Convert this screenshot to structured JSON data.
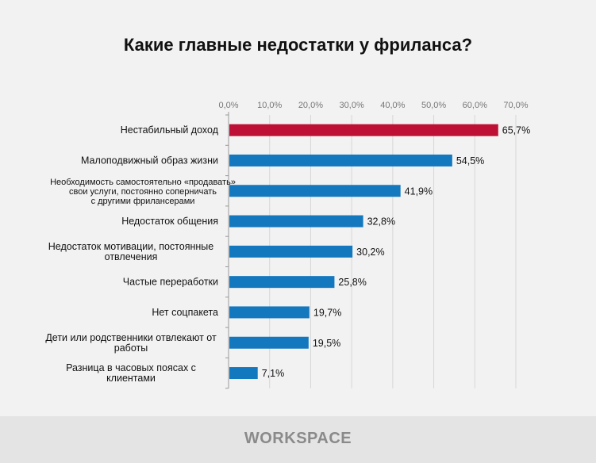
{
  "chart_data": {
    "type": "bar",
    "orientation": "horizontal",
    "title": "Какие главные недостатки у фриланса?",
    "categories": [
      "Нестабильный доход",
      "Малоподвижный образ жизни",
      "Необходимость самостоятельно «продавать» свои услуги, постоянно соперничать с другими фрилансерами",
      "Недостаток общения",
      "Недостаток мотивации, постоянные отвлечения",
      "Частые переработки",
      "Нет соцпакета",
      "Дети или родственники отвлекают от работы",
      "Разница в часовых поясах с клиентами"
    ],
    "category_lines": [
      [
        "Нестабильный доход"
      ],
      [
        "Малоподвижный образ жизни"
      ],
      [
        "Необходимость самостоятельно «продавать»",
        "свои услуги, постоянно соперничать",
        "с другими фрилансерами"
      ],
      [
        "Недостаток общения"
      ],
      [
        "Недостаток мотивации, постоянные",
        "отвлечения"
      ],
      [
        "Частые переработки"
      ],
      [
        "Нет соцпакета"
      ],
      [
        "Дети или родственники отвлекают от",
        "работы"
      ],
      [
        "Разница в часовых поясах с",
        "клиентами"
      ]
    ],
    "values": [
      65.7,
      54.5,
      41.9,
      32.8,
      30.2,
      25.8,
      19.7,
      19.5,
      7.1
    ],
    "data_labels": [
      "65,7%",
      "54,5%",
      "41,9%",
      "32,8%",
      "30,2%",
      "25,8%",
      "19,7%",
      "19,5%",
      "7,1%"
    ],
    "xlim": [
      0,
      70
    ],
    "ticks": [
      0,
      10,
      20,
      30,
      40,
      50,
      60,
      70
    ],
    "tick_labels": [
      "0,0%",
      "10,0%",
      "20,0%",
      "30,0%",
      "40,0%",
      "50,0%",
      "60,0%",
      "70,0%"
    ],
    "axis_position": "top",
    "grid": true,
    "colors": {
      "highlight": "#be0f34",
      "default": "#1478be"
    }
  },
  "footer": {
    "logo": "WORKSPACE"
  }
}
